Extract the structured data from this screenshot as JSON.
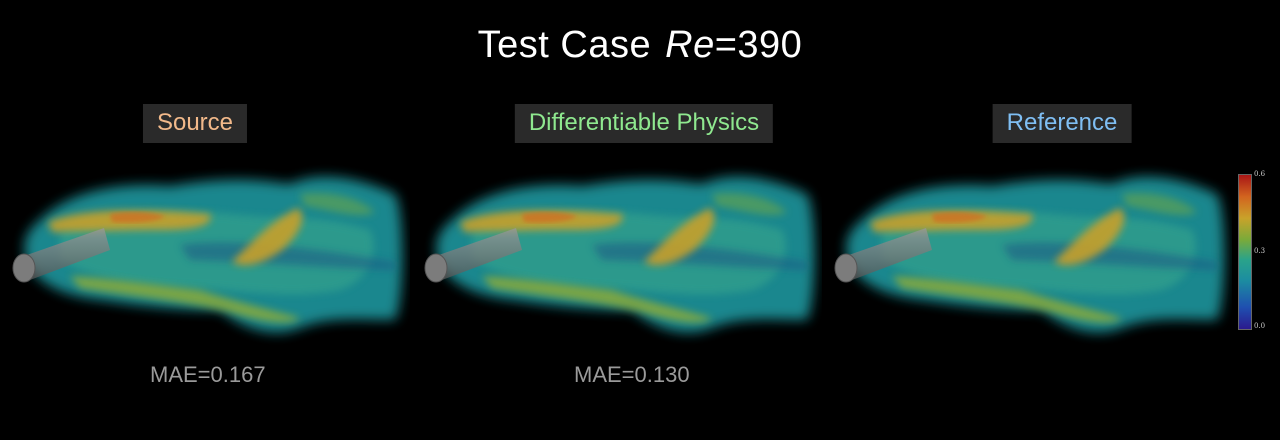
{
  "title": {
    "prefix": "Test Case",
    "re_symbol": "Re",
    "re_value": "=390"
  },
  "panels": [
    {
      "label": "Source",
      "label_color": "#f2b98a",
      "mae": "MAE=0.167"
    },
    {
      "label": "Differentiable Physics",
      "label_color": "#8fe88f",
      "mae": "MAE=0.130"
    },
    {
      "label": "Reference",
      "label_color": "#7fbef3",
      "mae": ""
    }
  ],
  "colorbar": {
    "max": "0.6",
    "mid": "0.3",
    "min": "0.0",
    "colormap": "jet-like"
  }
}
